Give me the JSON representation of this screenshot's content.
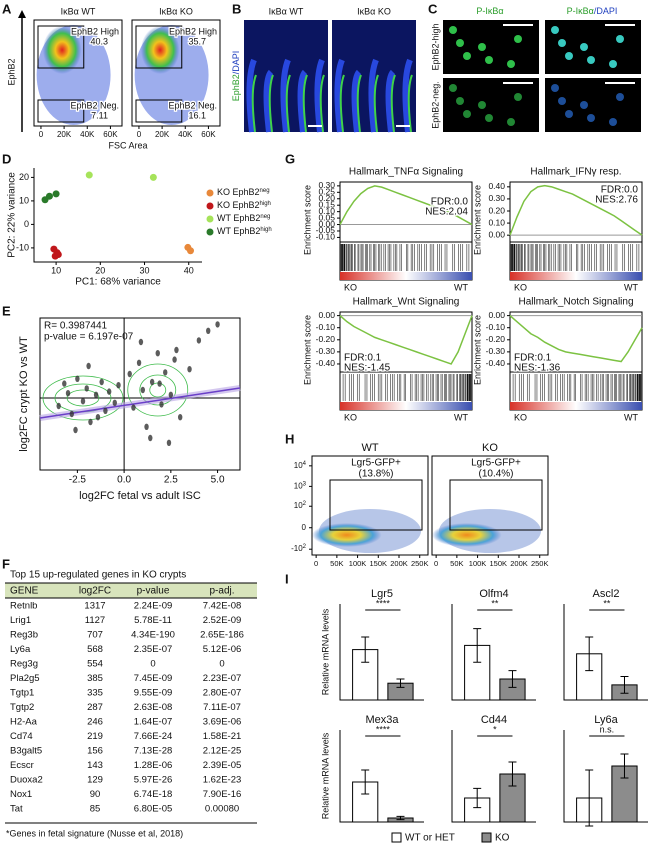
{
  "panel_labels": [
    "A",
    "B",
    "C",
    "D",
    "E",
    "F",
    "G",
    "H",
    "I"
  ],
  "A": {
    "y_label": "EphB2",
    "x_label": "FSC Area",
    "xlim": [
      -6000,
      70000
    ],
    "xticks": [
      0,
      {
        "value": 20000,
        "label": "20K"
      },
      {
        "value": 40000,
        "label": "40K"
      },
      {
        "value": 60000,
        "label": "60K"
      }
    ],
    "plots": [
      {
        "title": "IκBα WT",
        "gates": [
          {
            "name": "EphB2 High",
            "percent": 40.3
          },
          {
            "name": "EphB2 Neg.",
            "percent": 7.11
          }
        ]
      },
      {
        "title": "IκBα KO",
        "gates": [
          {
            "name": "EphB2 High",
            "percent": 35.7
          },
          {
            "name": "EphB2 Neg.",
            "percent": 16.1
          }
        ]
      }
    ]
  },
  "B": {
    "titles": [
      "IκBα WT",
      "IκBα KO"
    ],
    "stain": [
      "EphB2",
      "/DAPI"
    ],
    "stain_colors": [
      "#2a9d2a",
      "#1f3fbf"
    ]
  },
  "C": {
    "col_titles": [
      [
        "P-IκBα"
      ],
      [
        "P-IκBα",
        "/DAPI"
      ]
    ],
    "row_titles": [
      "EphB2-high",
      "EphB2-neg."
    ]
  },
  "D": {
    "type": "scatter",
    "x_label": "PC1: 68% variance",
    "y_label": "PC2: 22% variance",
    "xlim": [
      5,
      43
    ],
    "ylim": [
      -16,
      24
    ],
    "xticks": [
      10,
      20,
      30,
      40
    ],
    "yticks": [
      -10,
      0,
      10,
      20
    ],
    "series": [
      {
        "name": "KO EphB2",
        "sup": "neg",
        "color": "#e8883a",
        "x": [
          39.8,
          40.4
        ],
        "y": [
          -9.8,
          -11.2
        ]
      },
      {
        "name": "KO EphB2",
        "sup": "high",
        "color": "#c0171b",
        "x": [
          9.5,
          10.2,
          9.8,
          10.5
        ],
        "y": [
          -10.5,
          -12,
          -13.5,
          -12.8
        ]
      },
      {
        "name": "WT EphB2",
        "sup": "neg",
        "color": "#a6e35a",
        "x": [
          17.5,
          32
        ],
        "y": [
          21,
          20
        ]
      },
      {
        "name": "WT EphB2",
        "sup": "high",
        "color": "#2a7a2a",
        "x": [
          7.5,
          8.5,
          10
        ],
        "y": [
          10.5,
          12,
          13
        ]
      }
    ]
  },
  "E": {
    "type": "scatter",
    "annotations": [
      "R= 0.3987441",
      "p-value = 6.197e-07"
    ],
    "x_label": "log2FC fetal vs adult ISC",
    "y_label": "log2FC crypt KO vs WT",
    "xlim": [
      -4.5,
      6.2
    ],
    "ylim": [
      -4.5,
      5
    ],
    "xticks": [
      -2.5,
      {
        "value": 0,
        "label": "0.0"
      },
      2.5,
      {
        "value": 5,
        "label": "5.0"
      }
    ],
    "color": "#333333",
    "x": [
      -3.5,
      -3,
      -2.8,
      -2.5,
      -2.2,
      -2,
      -1.8,
      -1.5,
      -1.2,
      -1,
      -0.8,
      -0.5,
      -0.3,
      -2.6,
      -1.9,
      -3.2,
      -1.4,
      0.3,
      0.5,
      0.8,
      1,
      1.2,
      1.5,
      1.8,
      2,
      2.2,
      2.5,
      2.8,
      3,
      3.5,
      1.4,
      2.4,
      0.9,
      1.9,
      2.7,
      4,
      4.5,
      5
    ],
    "y": [
      -0.5,
      0.3,
      -1,
      1.2,
      -0.2,
      0.6,
      -1.5,
      0.2,
      1,
      -0.8,
      0.4,
      -0.3,
      0.8,
      -2,
      2,
      0.9,
      -1.2,
      1.5,
      -0.6,
      2.2,
      0.5,
      -1.8,
      1,
      2.8,
      -0.4,
      1.6,
      0.2,
      3,
      -1.2,
      1.8,
      -2.5,
      -2.8,
      3.5,
      0.9,
      2.4,
      3.6,
      4.2,
      4.6
    ]
  },
  "F": {
    "title": "Top 15 up-regulated genes in KO crypts",
    "header": [
      "GENE",
      "log2FC",
      "p-value",
      "p-adj."
    ],
    "rows": [
      [
        "Retnlb",
        1317,
        "2.24E-09",
        "7.42E-08"
      ],
      [
        "Lrig1",
        1127,
        "5.78E-11",
        "2.52E-09"
      ],
      [
        "Reg3b",
        707,
        "4.34E-190",
        "2.65E-186"
      ],
      [
        "Ly6a",
        568,
        "2.35E-07",
        "5.12E-06"
      ],
      [
        "Reg3g",
        554,
        0,
        0
      ],
      [
        "Pla2g5",
        385,
        "7.45E-09",
        "2.23E-07"
      ],
      [
        "Tgtp1",
        335,
        "9.55E-09",
        "2.80E-07"
      ],
      [
        "Tgtp2",
        287,
        "2.63E-08",
        "7.11E-07"
      ],
      [
        "H2-Aa",
        246,
        "1.64E-07",
        "3.69E-06"
      ],
      [
        "Cd74",
        219,
        "7.66E-24",
        "1.58E-21"
      ],
      [
        "B3galt5",
        156,
        "7.13E-28",
        "2.12E-25"
      ],
      [
        "Ecscr",
        143,
        "1.28E-06",
        "2.39E-05"
      ],
      [
        "Duoxa2",
        129,
        "5.97E-26",
        "1.62E-23"
      ],
      [
        "Nox1",
        90,
        "6.74E-18",
        "7.90E-16"
      ],
      [
        "Tat",
        85,
        "6.80E-05",
        "0.00080"
      ]
    ],
    "fetal": [
      true,
      true,
      false,
      true,
      false,
      false,
      true,
      true,
      true,
      true,
      true,
      true,
      true,
      false,
      true
    ],
    "fetal_color": "#e07b12",
    "header_color": "#d8e4bc",
    "footnote": "*Genes in fetal signature (Nusse et al, 2018)"
  },
  "G": {
    "groups": [
      "KO",
      "WT"
    ],
    "color": "#7cc242",
    "plots": [
      {
        "title": "Hallmark_TNFα Signaling",
        "y_label": "Enrichment score",
        "ylim": [
          -0.12,
          0.33
        ],
        "yticks": [
          {
            "value": 0.3,
            "label": "0.30"
          },
          {
            "value": 0.25,
            "label": "0.25"
          },
          {
            "value": 0.2,
            "label": "0.20"
          },
          {
            "value": 0.15,
            "label": "0.15"
          },
          {
            "value": 0.1,
            "label": "0.10"
          },
          {
            "value": 0.05,
            "label": "0.05"
          },
          {
            "value": 0,
            "label": "0.00"
          },
          {
            "value": -0.05,
            "label": "-0.05"
          },
          {
            "value": -0.1,
            "label": "-0.10"
          }
        ],
        "es": [
          0,
          0.1,
          0.18,
          0.24,
          0.28,
          0.3,
          0.29,
          0.27,
          0.25,
          0.23,
          0.21,
          0.19,
          0.17,
          0.15,
          0.13,
          0.11,
          0.09,
          0.06,
          0.03,
          0
        ],
        "stats": [
          "FDR:0.0",
          "NES:2.04"
        ],
        "stat_corner": "right"
      },
      {
        "title": "Hallmark_IFNγ resp.",
        "y_label": "Enrichment score",
        "ylim": [
          -0.04,
          0.44
        ],
        "yticks": [
          {
            "value": 0.4,
            "label": "0.40"
          },
          {
            "value": 0.3,
            "label": "0.30"
          },
          {
            "value": 0.2,
            "label": "0.20"
          },
          {
            "value": 0.1,
            "label": "0.10"
          },
          {
            "value": 0,
            "label": "0.00"
          }
        ],
        "es": [
          0,
          0.15,
          0.28,
          0.36,
          0.4,
          0.41,
          0.4,
          0.38,
          0.36,
          0.34,
          0.31,
          0.28,
          0.25,
          0.22,
          0.19,
          0.16,
          0.12,
          0.08,
          0.04,
          0
        ],
        "stats": [
          "FDR:0.0",
          "NES:2.76"
        ],
        "stat_corner": "right"
      },
      {
        "title": "Hallmark_Wnt Signaling",
        "y_label": "Enrichment score",
        "ylim": [
          -0.45,
          0.03
        ],
        "yticks": [
          {
            "value": 0,
            "label": "0.00"
          },
          {
            "value": -0.1,
            "label": "-0.10"
          },
          {
            "value": -0.2,
            "label": "-0.20"
          },
          {
            "value": -0.3,
            "label": "-0.30"
          },
          {
            "value": -0.4,
            "label": "-0.40"
          }
        ],
        "es": [
          0,
          -0.05,
          -0.09,
          -0.12,
          -0.15,
          -0.18,
          -0.2,
          -0.22,
          -0.24,
          -0.26,
          -0.28,
          -0.3,
          -0.32,
          -0.34,
          -0.36,
          -0.38,
          -0.4,
          -0.3,
          -0.15,
          0
        ],
        "stats": [
          "FDR:0.1",
          "NES:-1.45"
        ],
        "stat_corner": "left"
      },
      {
        "title": "Hallmark_Notch Signaling",
        "y_label": "Enrichment score",
        "ylim": [
          -0.45,
          0.03
        ],
        "yticks": [
          {
            "value": 0,
            "label": "0.00"
          },
          {
            "value": -0.1,
            "label": "-0.10"
          },
          {
            "value": -0.2,
            "label": "-0.20"
          },
          {
            "value": -0.3,
            "label": "-0.30"
          },
          {
            "value": -0.4,
            "label": "-0.40"
          }
        ],
        "es": [
          0,
          -0.05,
          -0.1,
          -0.15,
          -0.18,
          -0.22,
          -0.25,
          -0.28,
          -0.3,
          -0.31,
          -0.32,
          -0.33,
          -0.34,
          -0.35,
          -0.36,
          -0.37,
          -0.38,
          -0.3,
          -0.2,
          -0.1
        ],
        "stats": [
          "FDR:0.1",
          "NES:-1.36"
        ],
        "stat_corner": "left"
      }
    ]
  },
  "H": {
    "xlim": [
      -10000,
      270000
    ],
    "ylim": [
      -200,
      30000
    ],
    "xticks": [
      0,
      {
        "value": 50000,
        "label": "50K"
      },
      {
        "value": 100000,
        "label": "100K"
      },
      {
        "value": 150000,
        "label": "150K"
      },
      {
        "value": 200000,
        "label": "200K"
      },
      {
        "value": 250000,
        "label": "250K"
      }
    ],
    "yticks": [
      {
        "value": 10000,
        "label": "10",
        "exponent": "4"
      },
      {
        "value": 1000,
        "label": "10",
        "exponent": "3"
      },
      {
        "value": 100,
        "label": "10",
        "exponent": "2"
      },
      0,
      {
        "value": -100,
        "label": "-10",
        "exponent": "2"
      }
    ],
    "plots": [
      {
        "title": "WT",
        "gate_label": "Lgr5-GFP+",
        "gate_percent": "(13.8%)"
      },
      {
        "title": "KO",
        "gate_label": "Lgr5-GFP+",
        "gate_percent": "(10.4%)"
      }
    ]
  },
  "I": {
    "type": "bar",
    "y_label": "Relative mRNA levels",
    "ylim": [
      0,
      1
    ],
    "legend": [
      "WT or HET",
      "KO"
    ],
    "colors": [
      "#ffffff",
      "#8c8c8c"
    ],
    "genes": [
      {
        "name": "Lgr5",
        "sig": "****",
        "values": [
          0.6,
          0.2
        ],
        "errors": [
          0.15,
          0.05
        ]
      },
      {
        "name": "Olfm4",
        "sig": "**",
        "values": [
          0.65,
          0.25
        ],
        "errors": [
          0.2,
          0.1
        ]
      },
      {
        "name": "Ascl2",
        "sig": "**",
        "values": [
          0.55,
          0.18
        ],
        "errors": [
          0.2,
          0.1
        ]
      },
      {
        "name": "Mex3a",
        "sig": "****",
        "values": [
          0.5,
          0.05
        ],
        "errors": [
          0.15,
          0.02
        ]
      },
      {
        "name": "Cd44",
        "sig": "*",
        "values": [
          0.3,
          0.6
        ],
        "errors": [
          0.12,
          0.15
        ]
      },
      {
        "name": "Ly6a",
        "sig": "n.s.",
        "values": [
          0.3,
          0.7
        ],
        "errors": [
          0.35,
          0.15
        ]
      }
    ]
  }
}
